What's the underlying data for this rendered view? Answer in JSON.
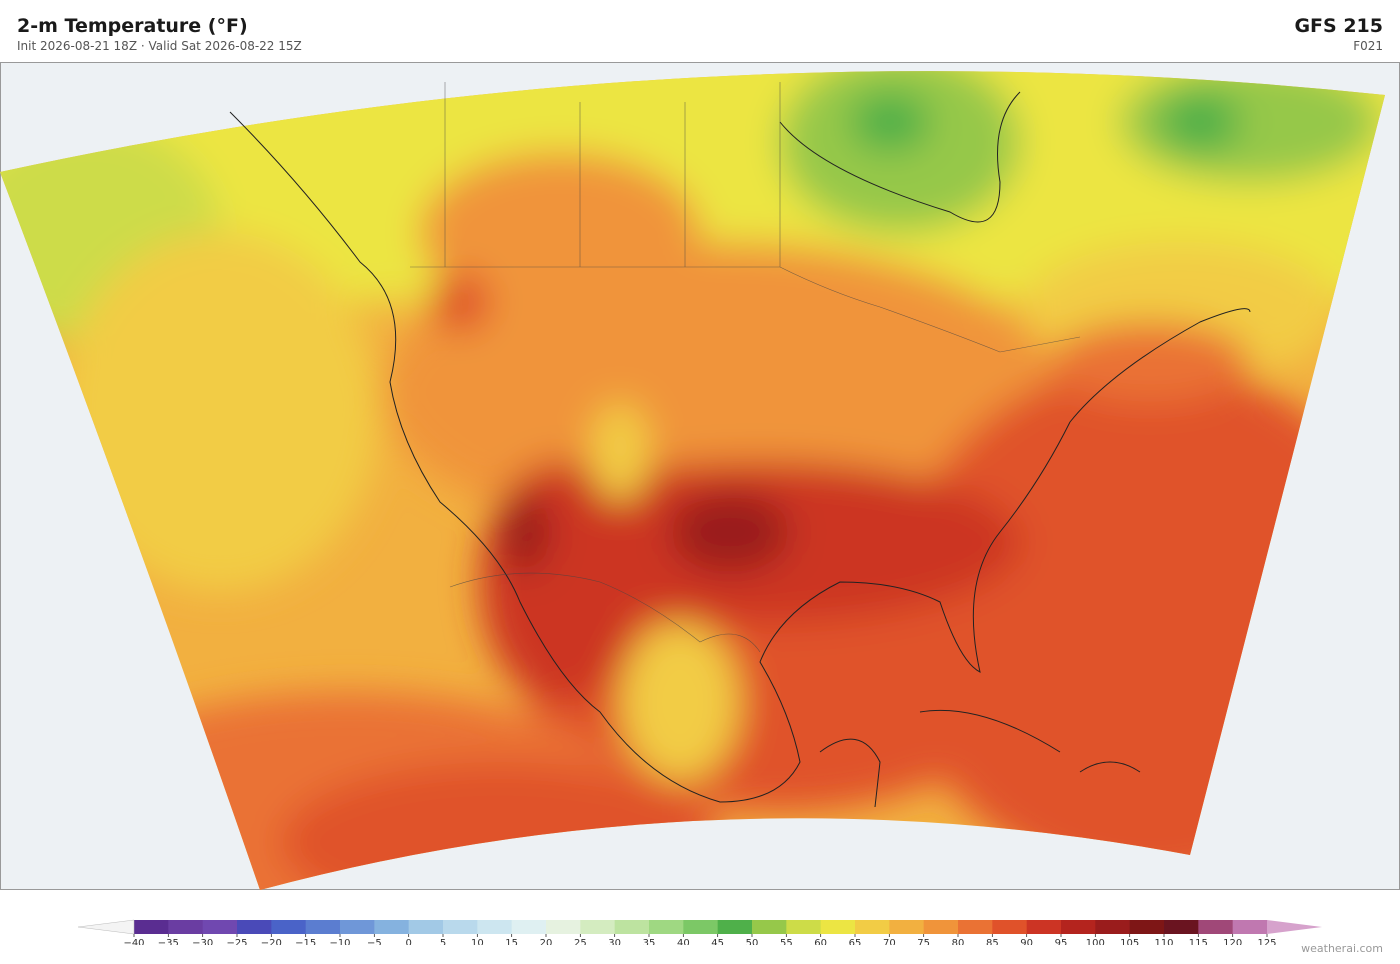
{
  "header": {
    "title": "2-m Temperature  (°F)",
    "subtitle": "Init 2026-08-21 18Z  ·  Valid Sat 2026-08-22 15Z",
    "model": "GFS  215",
    "forecast_hour": "F021"
  },
  "colorbar": {
    "ticks": [
      {
        "value": -40,
        "label": "−40"
      },
      {
        "value": -35,
        "label": "−35"
      },
      {
        "value": -30,
        "label": "−30"
      },
      {
        "value": -25,
        "label": "−25"
      },
      {
        "value": -20,
        "label": "−20"
      },
      {
        "value": -15,
        "label": "−15"
      },
      {
        "value": -10,
        "label": "−10"
      },
      {
        "value": -5,
        "label": "−5"
      },
      0,
      5,
      10,
      15,
      20,
      25,
      30,
      35,
      40,
      45,
      50,
      55,
      60,
      65,
      70,
      75,
      80,
      85,
      90,
      95,
      100,
      105,
      110,
      115,
      120,
      125
    ],
    "colors": [
      "#5a2d91",
      "#6a3da2",
      "#7048b0",
      "#4a4ab8",
      "#4a63c8",
      "#5b7dd0",
      "#6f97d8",
      "#85b2df",
      "#a2c9e6",
      "#b9d9ec",
      "#cde6f0",
      "#dff0f2",
      "#e6f2e0",
      "#d4ecc0",
      "#bde3a0",
      "#9fd882",
      "#7cc866",
      "#4fb04a",
      "#96c84a",
      "#cddc48",
      "#ece543",
      "#f2cc45",
      "#f2b040",
      "#f0943a",
      "#ea7234",
      "#e0522a",
      "#cc3424",
      "#b4241e",
      "#9a1c1c",
      "#7e1616",
      "#6a1420",
      "#a04878",
      "#c078b0"
    ],
    "under_color": "#f4f4f4",
    "over_color": "#d6a2cc"
  },
  "credit": "weatherai.com"
}
